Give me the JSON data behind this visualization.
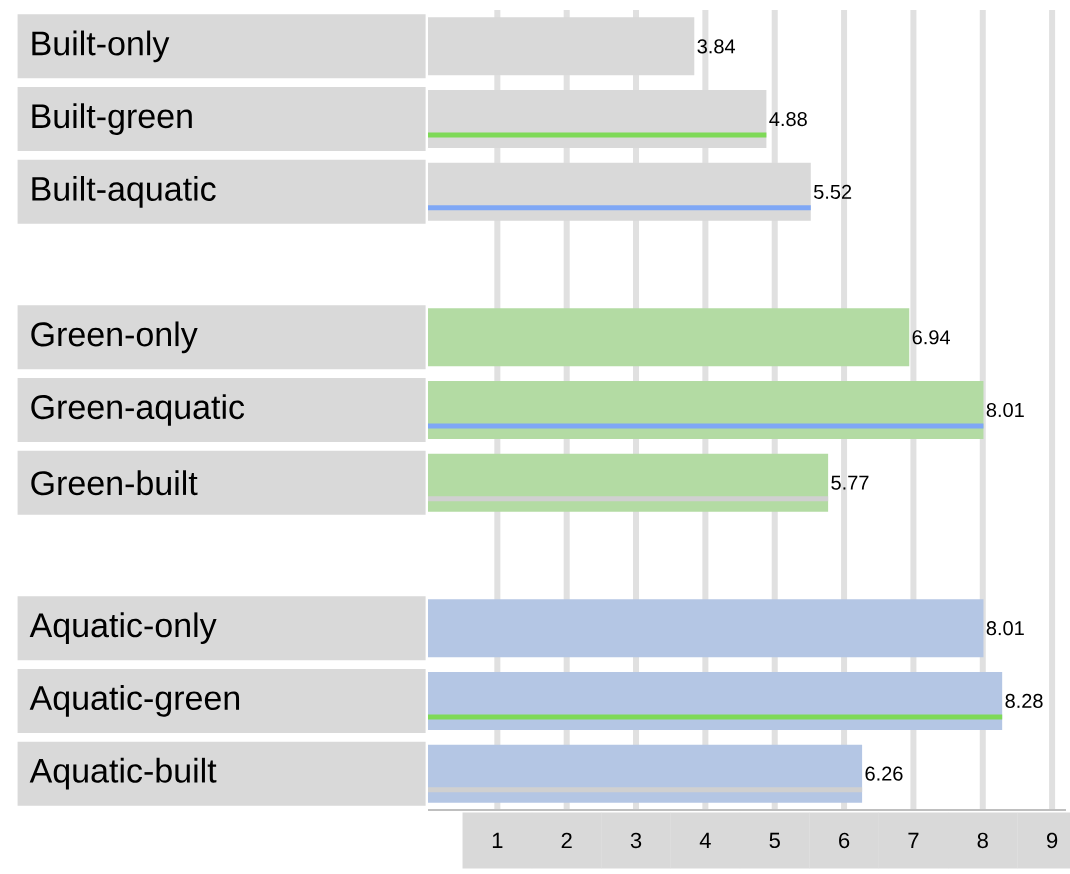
{
  "chart_data": {
    "type": "bar",
    "orientation": "horizontal",
    "categories": [
      "Built-only",
      "Built-green",
      "Built-aquatic",
      null,
      "Green-only",
      "Green-aquatic",
      "Green-built",
      null,
      "Aquatic-only",
      "Aquatic-green",
      "Aquatic-built"
    ],
    "series": [
      {
        "values": [
          3.84,
          4.88,
          5.52,
          null,
          6.94,
          8.01,
          5.77,
          null,
          8.01,
          8.28,
          6.26
        ],
        "colors": [
          "#d9d9d9",
          "#d9d9d9",
          "#d9d9d9",
          null,
          "#b3dba3",
          "#b3dba3",
          "#b3dba3",
          null,
          "#b4c6e4",
          "#b4c6e4",
          "#b4c6e4"
        ],
        "value_labels": [
          "3.84",
          "4.88",
          "5.52",
          null,
          "6.94",
          "8.01",
          "5.77",
          null,
          "8.01",
          "8.28",
          "6.26"
        ]
      },
      {
        "values": [
          null,
          4.88,
          5.52,
          null,
          null,
          8.01,
          5.77,
          null,
          null,
          8.28,
          6.26
        ],
        "colors": [
          null,
          "#7ed957",
          "#7fa7f5",
          null,
          null,
          "#7fa7f5",
          "#d0d0d0",
          null,
          null,
          "#7ed957",
          "#d0d0d0"
        ]
      }
    ],
    "xlim": [
      0,
      9.2
    ],
    "xticks": [
      1,
      2,
      3,
      4,
      5,
      6,
      7,
      8,
      9
    ],
    "grid": "x"
  }
}
